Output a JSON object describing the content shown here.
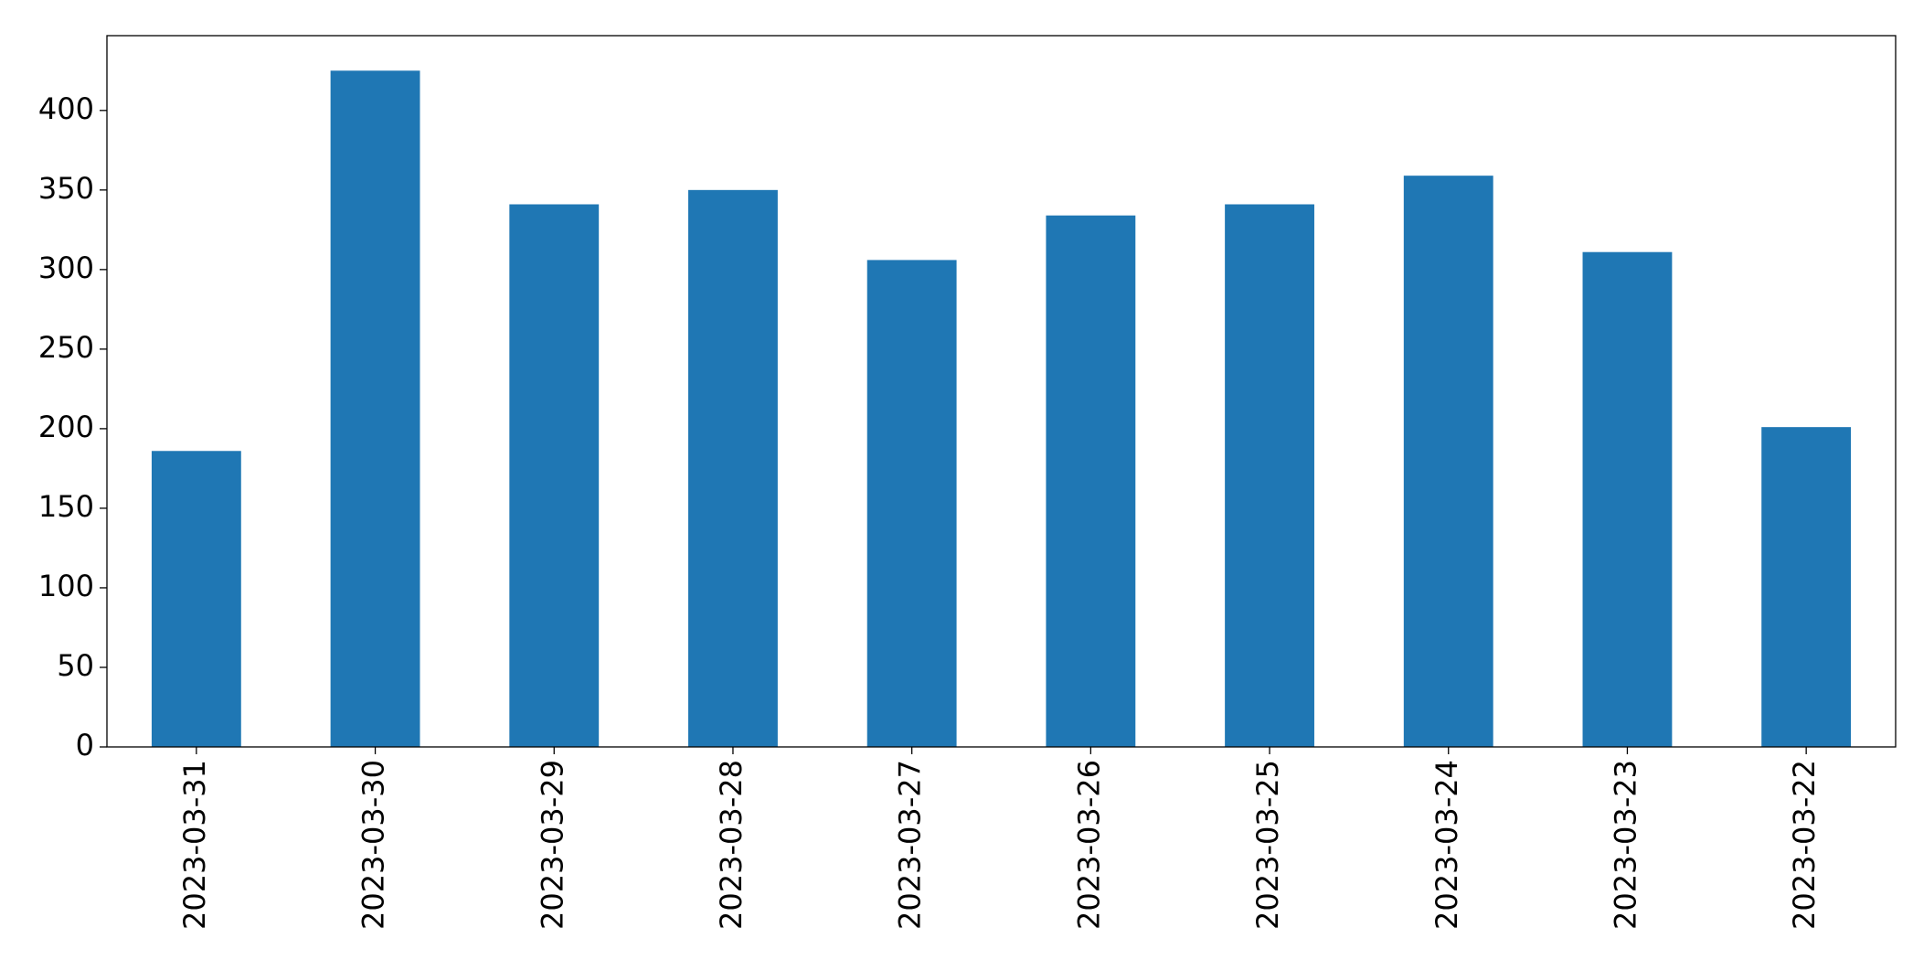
{
  "chart_data": {
    "type": "bar",
    "categories": [
      "2023-03-31",
      "2023-03-30",
      "2023-03-29",
      "2023-03-28",
      "2023-03-27",
      "2023-03-26",
      "2023-03-25",
      "2023-03-24",
      "2023-03-23",
      "2023-03-22"
    ],
    "values": [
      186,
      425,
      341,
      350,
      306,
      334,
      341,
      359,
      311,
      201
    ],
    "color": "#1f77b4",
    "ylim": [
      0,
      447
    ],
    "yticks": [
      0,
      50,
      100,
      150,
      200,
      250,
      300,
      350,
      400
    ],
    "grid": false
  }
}
